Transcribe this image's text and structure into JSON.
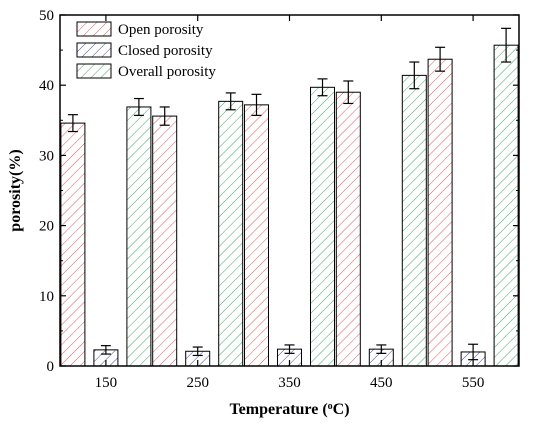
{
  "chart_data": {
    "type": "bar",
    "categories": [
      "150",
      "250",
      "350",
      "450",
      "550"
    ],
    "series": [
      {
        "name": "Open porosity",
        "values": [
          34.6,
          35.6,
          37.2,
          39.0,
          43.7
        ],
        "errors": [
          1.2,
          1.3,
          1.5,
          1.6,
          1.7
        ],
        "color": "#e05a5a",
        "pattern": "diagonal-hatch"
      },
      {
        "name": "Closed porosity",
        "values": [
          2.3,
          2.1,
          2.4,
          2.4,
          2.0
        ],
        "errors": [
          0.6,
          0.6,
          0.6,
          0.6,
          1.1
        ],
        "color": "#4a4aa8",
        "pattern": "diagonal-hatch"
      },
      {
        "name": "Overall porosity",
        "values": [
          36.9,
          37.7,
          39.7,
          41.4,
          45.7
        ],
        "errors": [
          1.2,
          1.2,
          1.2,
          1.9,
          2.4
        ],
        "color": "#3fa86a",
        "pattern": "diagonal-hatch"
      }
    ],
    "xlabel_parts": {
      "pre": "Temperature (",
      "sup": "o",
      "post": "C)"
    },
    "ylabel": "porosity(%)",
    "ylim": [
      0,
      50
    ],
    "yticks": [
      0,
      10,
      20,
      30,
      40,
      50
    ],
    "grid": false,
    "legend_position": "top-left",
    "title": ""
  }
}
